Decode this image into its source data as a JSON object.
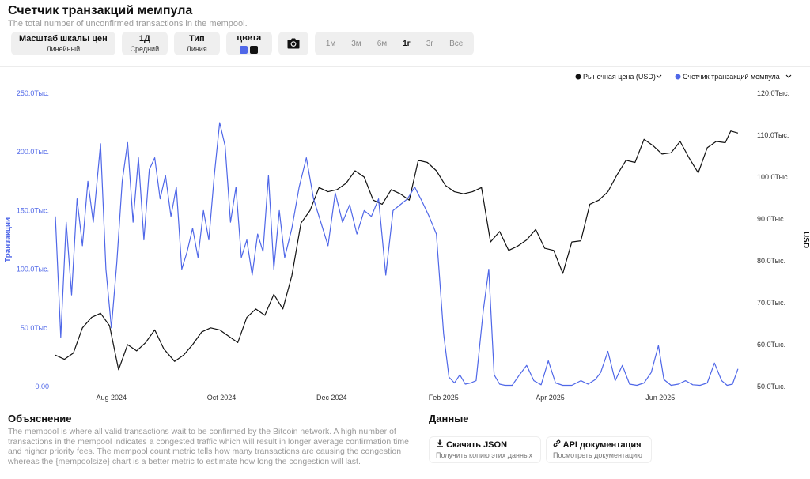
{
  "header": {
    "title": "Счетчик транзакций мемпула",
    "subtitle": "The total number of unconfirmed transactions in the mempool."
  },
  "toolbar": {
    "scale": {
      "label": "Масштаб шкалы цен",
      "value": "Линейный"
    },
    "interval": {
      "label": "1Д",
      "value": "Средний"
    },
    "type": {
      "label": "Тип",
      "value": "Линия"
    },
    "colors": {
      "label": "цвета",
      "swatch1": "#4f67e8",
      "swatch2": "#111111"
    },
    "camera_icon": "camera-icon",
    "ranges": [
      "1м",
      "3м",
      "6м",
      "1г",
      "3г",
      "Все"
    ],
    "active_range": "1г"
  },
  "chart_data": {
    "type": "line",
    "legend_position": "top-right",
    "grid": false,
    "x_ticks": [
      "Aug 2024",
      "Oct 2024",
      "Dec 2024",
      "Feb 2025",
      "Apr 2025",
      "Jun 2025"
    ],
    "y_left": {
      "label": "Транзакции",
      "ticks": [
        "0.00",
        "50.0Тыс.",
        "100.0Тыс.",
        "150.0Тыс.",
        "200.0Тыс.",
        "250.0Тыс."
      ],
      "range": [
        0,
        250000
      ]
    },
    "y_right": {
      "label": "USD",
      "ticks": [
        "50.0Тыс.",
        "60.0Тыс.",
        "70.0Тыс.",
        "80.0Тыс.",
        "90.0Тыс.",
        "100.0Тыс.",
        "110.0Тыс.",
        "120.0Тыс."
      ],
      "range": [
        50000,
        120000
      ]
    },
    "x_range": [
      "2024-07-01",
      "2025-07-25"
    ],
    "series": [
      {
        "name": "Рыночная цена (USD)",
        "color": "#111111",
        "axis": "right",
        "points": [
          [
            "2024-07-01",
            57500
          ],
          [
            "2024-07-06",
            56500
          ],
          [
            "2024-07-11",
            58000
          ],
          [
            "2024-07-16",
            64000
          ],
          [
            "2024-07-21",
            66500
          ],
          [
            "2024-07-26",
            67500
          ],
          [
            "2024-07-31",
            64500
          ],
          [
            "2024-08-05",
            54000
          ],
          [
            "2024-08-10",
            60000
          ],
          [
            "2024-08-15",
            58500
          ],
          [
            "2024-08-20",
            60500
          ],
          [
            "2024-08-25",
            63500
          ],
          [
            "2024-08-30",
            59000
          ],
          [
            "2024-09-05",
            56000
          ],
          [
            "2024-09-10",
            57500
          ],
          [
            "2024-09-15",
            60000
          ],
          [
            "2024-09-20",
            63000
          ],
          [
            "2024-09-25",
            64000
          ],
          [
            "2024-09-30",
            63500
          ],
          [
            "2024-10-05",
            62000
          ],
          [
            "2024-10-10",
            60500
          ],
          [
            "2024-10-15",
            66500
          ],
          [
            "2024-10-20",
            68500
          ],
          [
            "2024-10-25",
            67000
          ],
          [
            "2024-10-30",
            72000
          ],
          [
            "2024-11-04",
            68500
          ],
          [
            "2024-11-09",
            76500
          ],
          [
            "2024-11-14",
            89000
          ],
          [
            "2024-11-19",
            92000
          ],
          [
            "2024-11-24",
            97500
          ],
          [
            "2024-11-29",
            96500
          ],
          [
            "2024-12-04",
            97000
          ],
          [
            "2024-12-09",
            98500
          ],
          [
            "2024-12-14",
            101500
          ],
          [
            "2024-12-19",
            100000
          ],
          [
            "2024-12-24",
            94500
          ],
          [
            "2024-12-29",
            93500
          ],
          [
            "2025-01-03",
            97000
          ],
          [
            "2025-01-08",
            96000
          ],
          [
            "2025-01-13",
            94500
          ],
          [
            "2025-01-18",
            104000
          ],
          [
            "2025-01-23",
            103500
          ],
          [
            "2025-01-28",
            101500
          ],
          [
            "2025-02-02",
            98000
          ],
          [
            "2025-02-07",
            96500
          ],
          [
            "2025-02-12",
            96000
          ],
          [
            "2025-02-17",
            96500
          ],
          [
            "2025-02-22",
            97500
          ],
          [
            "2025-02-27",
            84500
          ],
          [
            "2025-03-04",
            87000
          ],
          [
            "2025-03-09",
            82500
          ],
          [
            "2025-03-14",
            83500
          ],
          [
            "2025-03-19",
            85000
          ],
          [
            "2025-03-24",
            87500
          ],
          [
            "2025-03-29",
            83000
          ],
          [
            "2025-04-03",
            82500
          ],
          [
            "2025-04-08",
            77000
          ],
          [
            "2025-04-13",
            84500
          ],
          [
            "2025-04-18",
            84800
          ],
          [
            "2025-04-23",
            93500
          ],
          [
            "2025-04-28",
            94500
          ],
          [
            "2025-05-03",
            96500
          ],
          [
            "2025-05-08",
            100500
          ],
          [
            "2025-05-13",
            104000
          ],
          [
            "2025-05-18",
            103500
          ],
          [
            "2025-05-23",
            109000
          ],
          [
            "2025-05-28",
            107500
          ],
          [
            "2025-06-02",
            105500
          ],
          [
            "2025-06-07",
            105800
          ],
          [
            "2025-06-12",
            108500
          ],
          [
            "2025-06-17",
            104500
          ],
          [
            "2025-06-22",
            101000
          ],
          [
            "2025-06-27",
            107000
          ],
          [
            "2025-07-02",
            108500
          ],
          [
            "2025-07-07",
            108200
          ],
          [
            "2025-07-10",
            111000
          ],
          [
            "2025-07-14",
            110500
          ]
        ]
      },
      {
        "name": "Счетчик транзакций мемпула",
        "color": "#4f67e8",
        "axis": "left",
        "points": [
          [
            "2024-07-01",
            145000
          ],
          [
            "2024-07-04",
            42000
          ],
          [
            "2024-07-07",
            140000
          ],
          [
            "2024-07-10",
            78000
          ],
          [
            "2024-07-13",
            160000
          ],
          [
            "2024-07-16",
            120000
          ],
          [
            "2024-07-19",
            175000
          ],
          [
            "2024-07-22",
            140000
          ],
          [
            "2024-07-26",
            207000
          ],
          [
            "2024-07-29",
            100000
          ],
          [
            "2024-08-01",
            50000
          ],
          [
            "2024-08-04",
            105000
          ],
          [
            "2024-08-07",
            175000
          ],
          [
            "2024-08-10",
            208000
          ],
          [
            "2024-08-13",
            140000
          ],
          [
            "2024-08-16",
            195000
          ],
          [
            "2024-08-19",
            125000
          ],
          [
            "2024-08-22",
            185000
          ],
          [
            "2024-08-25",
            195000
          ],
          [
            "2024-08-28",
            160000
          ],
          [
            "2024-08-31",
            180000
          ],
          [
            "2024-09-03",
            145000
          ],
          [
            "2024-09-06",
            170000
          ],
          [
            "2024-09-09",
            100000
          ],
          [
            "2024-09-12",
            115000
          ],
          [
            "2024-09-15",
            135000
          ],
          [
            "2024-09-18",
            110000
          ],
          [
            "2024-09-21",
            150000
          ],
          [
            "2024-09-24",
            125000
          ],
          [
            "2024-09-27",
            180000
          ],
          [
            "2024-09-30",
            225000
          ],
          [
            "2024-10-03",
            205000
          ],
          [
            "2024-10-06",
            140000
          ],
          [
            "2024-10-09",
            170000
          ],
          [
            "2024-10-12",
            110000
          ],
          [
            "2024-10-15",
            125000
          ],
          [
            "2024-10-18",
            95000
          ],
          [
            "2024-10-21",
            130000
          ],
          [
            "2024-10-24",
            115000
          ],
          [
            "2024-10-27",
            180000
          ],
          [
            "2024-10-30",
            100000
          ],
          [
            "2024-11-02",
            150000
          ],
          [
            "2024-11-05",
            110000
          ],
          [
            "2024-11-09",
            135000
          ],
          [
            "2024-11-13",
            170000
          ],
          [
            "2024-11-17",
            195000
          ],
          [
            "2024-11-21",
            160000
          ],
          [
            "2024-11-25",
            140000
          ],
          [
            "2024-11-29",
            120000
          ],
          [
            "2024-12-03",
            165000
          ],
          [
            "2024-12-07",
            140000
          ],
          [
            "2024-12-11",
            155000
          ],
          [
            "2024-12-15",
            130000
          ],
          [
            "2024-12-19",
            150000
          ],
          [
            "2024-12-23",
            145000
          ],
          [
            "2024-12-27",
            160000
          ],
          [
            "2024-12-31",
            95000
          ],
          [
            "2025-01-04",
            150000
          ],
          [
            "2025-01-08",
            155000
          ],
          [
            "2025-01-12",
            160000
          ],
          [
            "2025-01-16",
            170000
          ],
          [
            "2025-01-20",
            158000
          ],
          [
            "2025-01-24",
            145000
          ],
          [
            "2025-01-28",
            130000
          ],
          [
            "2025-02-01",
            45000
          ],
          [
            "2025-02-04",
            8000
          ],
          [
            "2025-02-07",
            3000
          ],
          [
            "2025-02-10",
            10000
          ],
          [
            "2025-02-13",
            2000
          ],
          [
            "2025-02-16",
            3000
          ],
          [
            "2025-02-19",
            5000
          ],
          [
            "2025-02-23",
            65000
          ],
          [
            "2025-02-26",
            100000
          ],
          [
            "2025-03-01",
            10000
          ],
          [
            "2025-03-04",
            2000
          ],
          [
            "2025-03-07",
            1000
          ],
          [
            "2025-03-11",
            1000
          ],
          [
            "2025-03-15",
            10000
          ],
          [
            "2025-03-19",
            18000
          ],
          [
            "2025-03-23",
            5000
          ],
          [
            "2025-03-27",
            1500
          ],
          [
            "2025-03-31",
            22000
          ],
          [
            "2025-04-04",
            3000
          ],
          [
            "2025-04-08",
            1000
          ],
          [
            "2025-04-13",
            1000
          ],
          [
            "2025-04-18",
            5000
          ],
          [
            "2025-04-22",
            2000
          ],
          [
            "2025-04-26",
            6000
          ],
          [
            "2025-04-29",
            12000
          ],
          [
            "2025-05-03",
            30000
          ],
          [
            "2025-05-07",
            5000
          ],
          [
            "2025-05-11",
            18000
          ],
          [
            "2025-05-15",
            2000
          ],
          [
            "2025-05-19",
            1000
          ],
          [
            "2025-05-23",
            3000
          ],
          [
            "2025-05-27",
            12000
          ],
          [
            "2025-05-31",
            35000
          ],
          [
            "2025-06-03",
            6000
          ],
          [
            "2025-06-07",
            1000
          ],
          [
            "2025-06-11",
            2000
          ],
          [
            "2025-06-15",
            5000
          ],
          [
            "2025-06-19",
            1500
          ],
          [
            "2025-06-23",
            1000
          ],
          [
            "2025-06-27",
            3000
          ],
          [
            "2025-07-01",
            20000
          ],
          [
            "2025-07-05",
            5000
          ],
          [
            "2025-07-08",
            1000
          ],
          [
            "2025-07-11",
            2000
          ],
          [
            "2025-07-14",
            15000
          ]
        ]
      }
    ]
  },
  "explanation": {
    "heading": "Объяснение",
    "text": "The mempool is where all valid transactions wait to be confirmed by the Bitcoin network. A high number of transactions in the mempool indicates a congested traffic which will result in longer average confirmation time and higher priority fees. The mempool count metric tells how many transactions are causing the congestion whereas the {mempoolsize} chart is a better metric to estimate how long the congestion will last."
  },
  "data_section": {
    "heading": "Данные",
    "download": {
      "label": "Скачать JSON",
      "sub": "Получить копию этих данных",
      "icon": "download-icon"
    },
    "api": {
      "label": "API документация",
      "sub": "Посмотреть документацию",
      "icon": "link-icon"
    }
  }
}
